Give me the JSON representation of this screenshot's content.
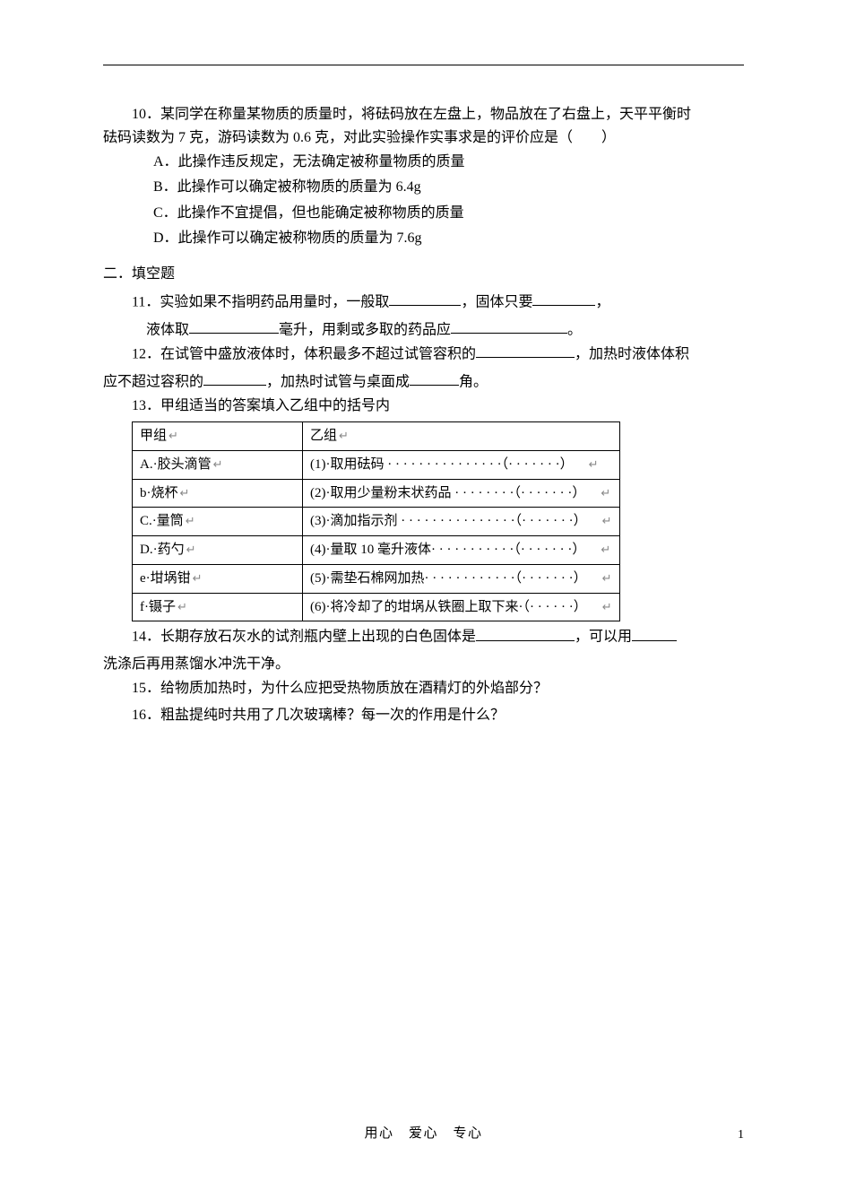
{
  "q10": {
    "num": "10．",
    "text_line1": "某同学在称量某物质的质量时，将砝码放在左盘上，物品放在了右盘上，天平平衡时",
    "text_line2": "砝码读数为 7 克，游码读数为 0.6 克，对此实验操作实事求是的评价应是（　　）",
    "options": {
      "A": "A．此操作违反规定，无法确定被称量物质的质量",
      "B": "B．此操作可以确定被称物质的质量为 6.4g",
      "C": "C．此操作不宜提倡，但也能确定被称物质的质量",
      "D": "D．此操作可以确定被称物质的质量为 7.6g"
    }
  },
  "section2": "二．填空题",
  "q11": {
    "num": "11．",
    "part1": "实验如果不指明药品用量时，一般取",
    "part2": "，固体只要",
    "part3": "，",
    "line2a": "液体取",
    "line2b": "毫升，用剩或多取的药品应",
    "line2end": "。"
  },
  "q12": {
    "num": "12．",
    "part1": "在试管中盛放液体时，体积最多不超过试管容积的",
    "part2": "，加热时液体体积",
    "line2a": "应不超过容积的",
    "line2b": "，加热时试管与桌面成",
    "line2c": "角。"
  },
  "q13": {
    "num": "13．",
    "text": "甲组适当的答案填入乙组中的括号内",
    "table": {
      "header_jia": "甲组",
      "header_yi": "乙组",
      "ret_glyph": "↵",
      "rows": [
        {
          "jia": "A.·胶头滴管",
          "yi": "(1)·取用砝码 · · · · · · · · · · · · · · ·（· · · · · · ·）"
        },
        {
          "jia": "b·烧杯",
          "yi": "(2)·取用少量粉末状药品 · · · · · · · ·（· · · · · · ·）"
        },
        {
          "jia": "C.·量筒",
          "yi": "(3)·滴加指示剂 · · · · · · · · · · · · · · ·（· · · · · · ·）"
        },
        {
          "jia": "D.·药勺",
          "yi": "(4)·量取 10 毫升液体· · · · · · · · · · ·（· · · · · · ·）"
        },
        {
          "jia": "e·坩埚钳",
          "yi": "(5)·需垫石棉网加热· · · · · · · · · · · ·（· · · · · · ·）"
        },
        {
          "jia": "f·镊子",
          "yi": "(6)·将冷却了的坩埚从铁圈上取下来·（· · · · · ·）"
        }
      ]
    }
  },
  "q14": {
    "num": "14．",
    "part1": "长期存放石灰水的试剂瓶内壁上出现的白色固体是",
    "part2": "，可以用",
    "line2": "洗涤后再用蒸馏水冲洗干净。"
  },
  "q15": {
    "num": "15．",
    "text": "给物质加热时，为什么应把受热物质放在酒精灯的外焰部分？"
  },
  "q16": {
    "num": "16．",
    "text": "粗盐提纯时共用了几次玻璃棒？每一次的作用是什么？"
  },
  "footer": {
    "motto": "用心　爱心　专心",
    "pagenum": "1"
  }
}
